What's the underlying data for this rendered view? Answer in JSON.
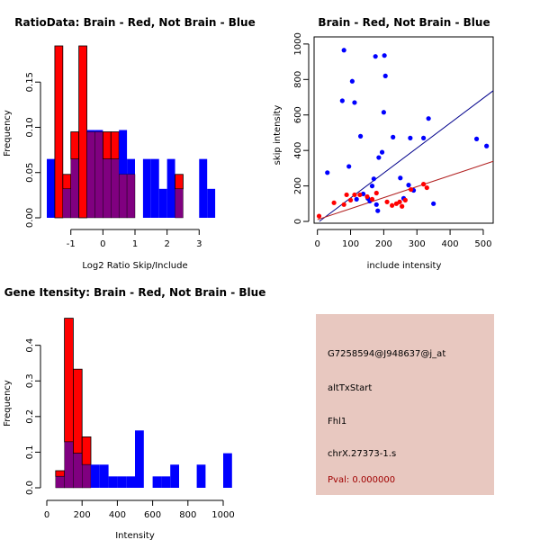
{
  "colors": {
    "red": "#ff0000",
    "blue": "#0000ff",
    "overlap": "#800080",
    "red_point": "#ff0000",
    "blue_point": "#0000ff",
    "blue_line": "#00008b",
    "red_line": "#b22222",
    "info_bg": "#e8c8c0",
    "pval_text": "#a00000"
  },
  "chart_data": [
    {
      "type": "bar",
      "subtype": "overlaid-histogram",
      "title": "RatioData: Brain - Red, Not Brain - Blue",
      "xlabel": "Log2 Ratio Skip/Include",
      "ylabel": "Frequency",
      "xlim": [
        -1.75,
        3.75
      ],
      "ylim": [
        0,
        0.19
      ],
      "xticks": [
        -1,
        0,
        1,
        2,
        3
      ],
      "xtick_labels": [
        "-1",
        "0",
        "1",
        "2",
        "3"
      ],
      "yticks": [
        0,
        0.05,
        0.1,
        0.15
      ],
      "ytick_labels": [
        "0.00",
        "0.05",
        "0.10",
        "0.15"
      ],
      "bin_start": -1.75,
      "bin_width": 0.25,
      "series": [
        {
          "name": "Brain",
          "color": "red",
          "values": [
            0,
            0.19,
            0.048,
            0.095,
            0.19,
            0.095,
            0.095,
            0.095,
            0.095,
            0.048,
            0.048,
            0,
            0,
            0,
            0,
            0,
            0.048,
            0,
            0,
            0,
            0,
            0
          ]
        },
        {
          "name": "Not Brain",
          "color": "blue",
          "values": [
            0.065,
            0,
            0.032,
            0.065,
            0,
            0.097,
            0.097,
            0.065,
            0.065,
            0.097,
            0.065,
            0,
            0.065,
            0.065,
            0.032,
            0.065,
            0.032,
            0,
            0,
            0.065,
            0.032,
            0
          ]
        }
      ]
    },
    {
      "type": "scatter",
      "title": "Brain - Red, Not Brain - Blue",
      "xlabel": "include intensity",
      "ylabel": "skip intensity",
      "xlim": [
        -10,
        530
      ],
      "ylim": [
        -10,
        1040
      ],
      "xticks": [
        0,
        100,
        200,
        300,
        400,
        500
      ],
      "xtick_labels": [
        "0",
        "100",
        "200",
        "300",
        "400",
        "500"
      ],
      "yticks": [
        0,
        200,
        400,
        600,
        800,
        1000
      ],
      "ytick_labels": [
        "0",
        "200",
        "400",
        "600",
        "800",
        "1000"
      ],
      "series": [
        {
          "name": "Brain",
          "color": "red",
          "points": [
            [
              5,
              30
            ],
            [
              50,
              105
            ],
            [
              80,
              95
            ],
            [
              88,
              150
            ],
            [
              100,
              120
            ],
            [
              112,
              150
            ],
            [
              128,
              150
            ],
            [
              150,
              140
            ],
            [
              165,
              125
            ],
            [
              178,
              160
            ],
            [
              210,
              110
            ],
            [
              225,
              90
            ],
            [
              238,
              100
            ],
            [
              248,
              110
            ],
            [
              255,
              85
            ],
            [
              265,
              120
            ],
            [
              282,
              180
            ],
            [
              320,
              210
            ],
            [
              330,
              190
            ]
          ]
        },
        {
          "name": "Not Brain",
          "color": "blue",
          "points": [
            [
              30,
              275
            ],
            [
              75,
              680
            ],
            [
              80,
              965
            ],
            [
              95,
              310
            ],
            [
              105,
              790
            ],
            [
              112,
              670
            ],
            [
              118,
              125
            ],
            [
              130,
              480
            ],
            [
              138,
              155
            ],
            [
              152,
              130
            ],
            [
              158,
              115
            ],
            [
              165,
              200
            ],
            [
              170,
              240
            ],
            [
              175,
              930
            ],
            [
              178,
              95
            ],
            [
              182,
              60
            ],
            [
              185,
              360
            ],
            [
              195,
              390
            ],
            [
              200,
              615
            ],
            [
              202,
              935
            ],
            [
              205,
              820
            ],
            [
              228,
              475
            ],
            [
              250,
              245
            ],
            [
              260,
              130
            ],
            [
              275,
              205
            ],
            [
              280,
              470
            ],
            [
              290,
              175
            ],
            [
              320,
              470
            ],
            [
              335,
              580
            ],
            [
              350,
              100
            ],
            [
              480,
              465
            ],
            [
              510,
              425
            ]
          ]
        }
      ],
      "fit_lines": [
        {
          "name": "Not Brain fit",
          "color": "blue_line",
          "slope": 1.405,
          "intercept": -8
        },
        {
          "name": "Brain fit",
          "color": "red_line",
          "slope": 0.62,
          "intercept": 10
        }
      ]
    },
    {
      "type": "bar",
      "subtype": "overlaid-histogram",
      "title": "Gene Itensity: Brain - Red, Not Brain - Blue",
      "xlabel": "Intensity",
      "ylabel": "Frequency",
      "xlim": [
        0,
        1000
      ],
      "ylim": [
        0,
        0.48
      ],
      "xticks": [
        0,
        200,
        400,
        600,
        800,
        1000
      ],
      "xtick_labels": [
        "0",
        "200",
        "400",
        "600",
        "800",
        "1000"
      ],
      "yticks": [
        0,
        0.1,
        0.2,
        0.3,
        0.4
      ],
      "ytick_labels": [
        "0.0",
        "0.1",
        "0.2",
        "0.3",
        "0.4"
      ],
      "bin_start": 50,
      "bin_width": 50,
      "series": [
        {
          "name": "Brain",
          "color": "red",
          "values": [
            0.048,
            0.476,
            0.333,
            0.143,
            0,
            0,
            0,
            0,
            0,
            0,
            0,
            0,
            0,
            0,
            0,
            0,
            0,
            0
          ]
        },
        {
          "name": "Not Brain",
          "color": "blue",
          "values": [
            0.032,
            0.129,
            0.097,
            0.065,
            0.065,
            0.065,
            0.032,
            0.032,
            0.032,
            0.161,
            0,
            0.032,
            0.032,
            0.065,
            0,
            0,
            0.065,
            0,
            0,
            0.097
          ]
        }
      ]
    }
  ],
  "info_panel": {
    "probe_id": "G7258594@J948637@j_at",
    "event_type": "altTxStart",
    "gene": "Fhl1",
    "location": "chrX.27373-1.s",
    "pval": "Pval: 0.000000"
  }
}
